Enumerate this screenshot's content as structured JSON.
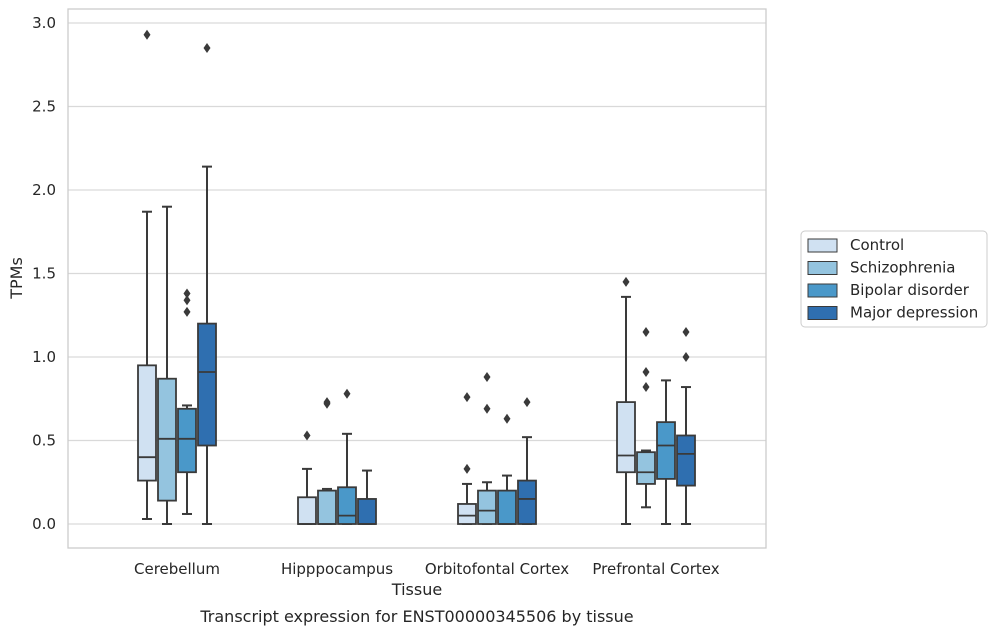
{
  "chart_data": {
    "type": "box",
    "caption": "Transcript expression for ENST00000345506 by tissue",
    "xlabel": "Tissue",
    "ylabel": "TPMs",
    "ylim": [
      -0.14,
      3.08
    ],
    "yticks": [
      0.0,
      0.5,
      1.0,
      1.5,
      2.0,
      2.5,
      3.0
    ],
    "ytick_labels": [
      "0.0",
      "0.5",
      "1.0",
      "1.5",
      "2.0",
      "2.5",
      "3.0"
    ],
    "grid": "horizontal",
    "legend_position": "right",
    "categories": [
      "Cerebellum",
      "Hipppocampus",
      "Orbitofontal Cortex",
      "Prefrontal Cortex"
    ],
    "series": [
      {
        "name": "Control",
        "color": "#d0e1f2",
        "boxes": [
          {
            "min": 0.03,
            "q1": 0.26,
            "median": 0.4,
            "q3": 0.95,
            "max": 1.87,
            "outliers": [
              2.93
            ]
          },
          {
            "min": 0.0,
            "q1": 0.0,
            "median": 0.0,
            "q3": 0.16,
            "max": 0.33,
            "outliers": [
              0.53
            ]
          },
          {
            "min": 0.0,
            "q1": 0.0,
            "median": 0.05,
            "q3": 0.12,
            "max": 0.24,
            "outliers": [
              0.33,
              0.76
            ]
          },
          {
            "min": 0.0,
            "q1": 0.31,
            "median": 0.41,
            "q3": 0.73,
            "max": 1.36,
            "outliers": [
              1.45
            ]
          }
        ]
      },
      {
        "name": "Schizophrenia",
        "color": "#94c4df",
        "boxes": [
          {
            "min": 0.0,
            "q1": 0.14,
            "median": 0.51,
            "q3": 0.87,
            "max": 1.9,
            "outliers": []
          },
          {
            "min": 0.0,
            "q1": 0.0,
            "median": 0.0,
            "q3": 0.2,
            "max": 0.21,
            "outliers": [
              0.72,
              0.73
            ]
          },
          {
            "min": 0.0,
            "q1": 0.0,
            "median": 0.08,
            "q3": 0.2,
            "max": 0.25,
            "outliers": [
              0.69,
              0.88
            ]
          },
          {
            "min": 0.1,
            "q1": 0.24,
            "median": 0.31,
            "q3": 0.43,
            "max": 0.44,
            "outliers": [
              0.82,
              0.91,
              1.15
            ]
          }
        ]
      },
      {
        "name": "Bipolar disorder",
        "color": "#4a98c9",
        "boxes": [
          {
            "min": 0.06,
            "q1": 0.31,
            "median": 0.51,
            "q3": 0.69,
            "max": 0.71,
            "outliers": [
              1.27,
              1.34,
              1.38
            ]
          },
          {
            "min": 0.0,
            "q1": 0.0,
            "median": 0.05,
            "q3": 0.22,
            "max": 0.54,
            "outliers": [
              0.78
            ]
          },
          {
            "min": 0.0,
            "q1": 0.0,
            "median": 0.0,
            "q3": 0.2,
            "max": 0.29,
            "outliers": [
              0.63
            ]
          },
          {
            "min": 0.0,
            "q1": 0.27,
            "median": 0.47,
            "q3": 0.61,
            "max": 0.86,
            "outliers": []
          }
        ]
      },
      {
        "name": "Major depression",
        "color": "#2f6fb0",
        "boxes": [
          {
            "min": 0.0,
            "q1": 0.47,
            "median": 0.91,
            "q3": 1.2,
            "max": 2.14,
            "outliers": [
              2.85
            ]
          },
          {
            "min": 0.0,
            "q1": 0.0,
            "median": 0.0,
            "q3": 0.15,
            "max": 0.32,
            "outliers": []
          },
          {
            "min": 0.0,
            "q1": 0.0,
            "median": 0.15,
            "q3": 0.26,
            "max": 0.52,
            "outliers": [
              0.73
            ]
          },
          {
            "min": 0.0,
            "q1": 0.23,
            "median": 0.42,
            "q3": 0.53,
            "max": 0.82,
            "outliers": [
              1.0,
              1.15
            ]
          }
        ]
      }
    ]
  },
  "style": {
    "gridColor": "#d9d9d9",
    "lineColor": "#3a3a3a",
    "frameColor": "#cccccc"
  }
}
